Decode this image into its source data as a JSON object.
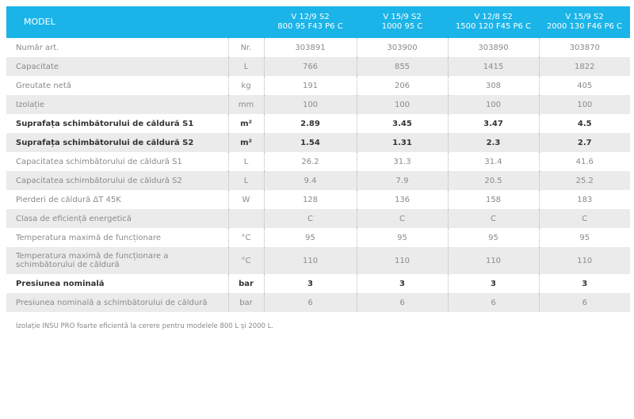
{
  "header": {
    "model_label": "MODEL",
    "models": [
      [
        "V 12/9 S2",
        "800 95 F43 P6 C"
      ],
      [
        "V 15/9 S2",
        "1000 95 C"
      ],
      [
        "V 12/8 S2",
        "1500 120 F45 P6 C"
      ],
      [
        "V 15/9  S2",
        "2000 130 F46 P6 C"
      ]
    ]
  },
  "rows": [
    {
      "label": "Număr art.",
      "unit": "Nr.",
      "values": [
        "303891",
        "303900",
        "303890",
        "303870"
      ],
      "bold": false
    },
    {
      "label": "Capacitate",
      "unit": "L",
      "values": [
        "766",
        "855",
        "1415",
        "1822"
      ],
      "bold": false
    },
    {
      "label": "Greutate netă",
      "unit": "kg",
      "values": [
        "191",
        "206",
        "308",
        "405"
      ],
      "bold": false
    },
    {
      "label": "Izolație",
      "unit": "mm",
      "values": [
        "100",
        "100",
        "100",
        "100"
      ],
      "bold": false
    },
    {
      "label": "Suprafața schimbătorului de căldură S1",
      "unit": "m²",
      "values": [
        "2.89",
        "3.45",
        "3.47",
        "4.5"
      ],
      "bold": true
    },
    {
      "label": "Suprafața schimbătorului de căldură S2",
      "unit": "m²",
      "values": [
        "1.54",
        "1.31",
        "2.3",
        "2.7"
      ],
      "bold": true
    },
    {
      "label": "Capacitatea schimbătorului de căldură S1",
      "unit": "L",
      "values": [
        "26.2",
        "31.3",
        "31.4",
        "41.6"
      ],
      "bold": false
    },
    {
      "label": "Capacitatea schimbătorului de căldură S2",
      "unit": "L",
      "values": [
        "9.4",
        "7.9",
        "20.5",
        "25.2"
      ],
      "bold": false
    },
    {
      "label": "Pierderi de căldură ΔT 45K",
      "unit": "W",
      "values": [
        "128",
        "136",
        "158",
        "183"
      ],
      "bold": false
    },
    {
      "label": "Clasa de eficiență energetică",
      "unit": "",
      "values": [
        "C",
        "C",
        "C",
        "C"
      ],
      "bold": false
    },
    {
      "label": "Temperatura maximă de funcționare",
      "unit": "°C",
      "values": [
        "95",
        "95",
        "95",
        "95"
      ],
      "bold": false
    },
    {
      "label": "Temperatura maximă de funcționare a schimbătorului de căldură",
      "unit": "°C",
      "values": [
        "110",
        "110",
        "110",
        "110"
      ],
      "bold": false
    },
    {
      "label": "Presiunea nominală",
      "unit": "bar",
      "values": [
        "3",
        "3",
        "3",
        "3"
      ],
      "bold": true
    },
    {
      "label": "Presiunea nominală a schimbătorului de căldură",
      "unit": "bar",
      "values": [
        "6",
        "6",
        "6",
        "6"
      ],
      "bold": false
    }
  ],
  "footnote": "Izolație INSU PRO foarte eficientă la cerere pentru modelele 800 L și 2000 L."
}
